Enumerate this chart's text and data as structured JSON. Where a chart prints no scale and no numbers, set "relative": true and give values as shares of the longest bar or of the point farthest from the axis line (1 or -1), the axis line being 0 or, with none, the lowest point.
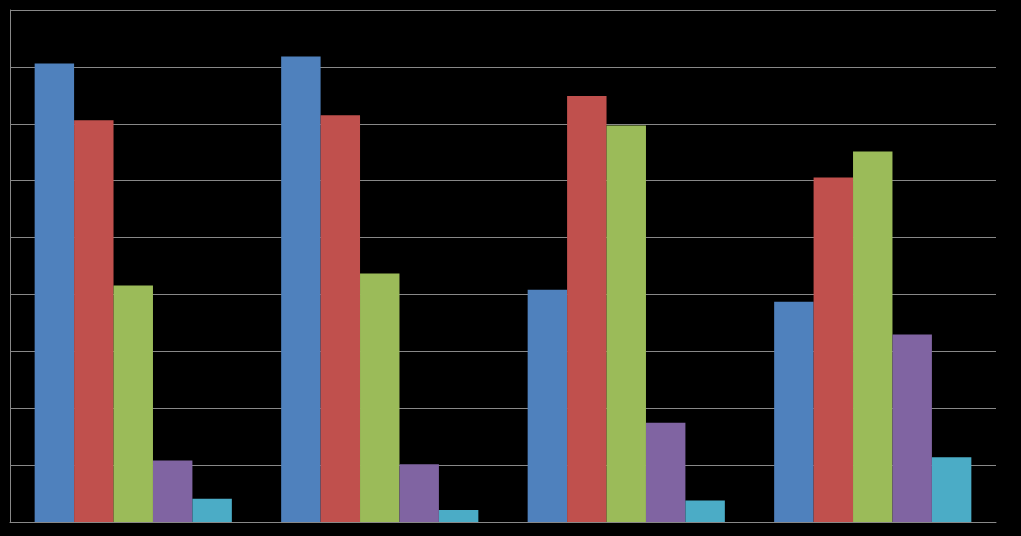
{
  "chart_data": {
    "type": "bar",
    "relative": true,
    "grid": "y",
    "categories": [
      null,
      null,
      null,
      null
    ],
    "series": [
      {
        "color": "#4f81bd",
        "values": [
          0.985,
          1,
          0.499,
          0.473
        ]
      },
      {
        "color": "#c0504d",
        "values": [
          0.863,
          0.874,
          0.915,
          0.74
        ]
      },
      {
        "color": "#9bbb59",
        "values": [
          0.508,
          0.534,
          0.852,
          0.796
        ]
      },
      {
        "color": "#8064a2",
        "values": [
          0.132,
          0.124,
          0.213,
          0.403
        ]
      },
      {
        "color": "#4bacc6",
        "values": [
          0.05,
          0.026,
          0.046,
          0.139
        ]
      }
    ]
  }
}
